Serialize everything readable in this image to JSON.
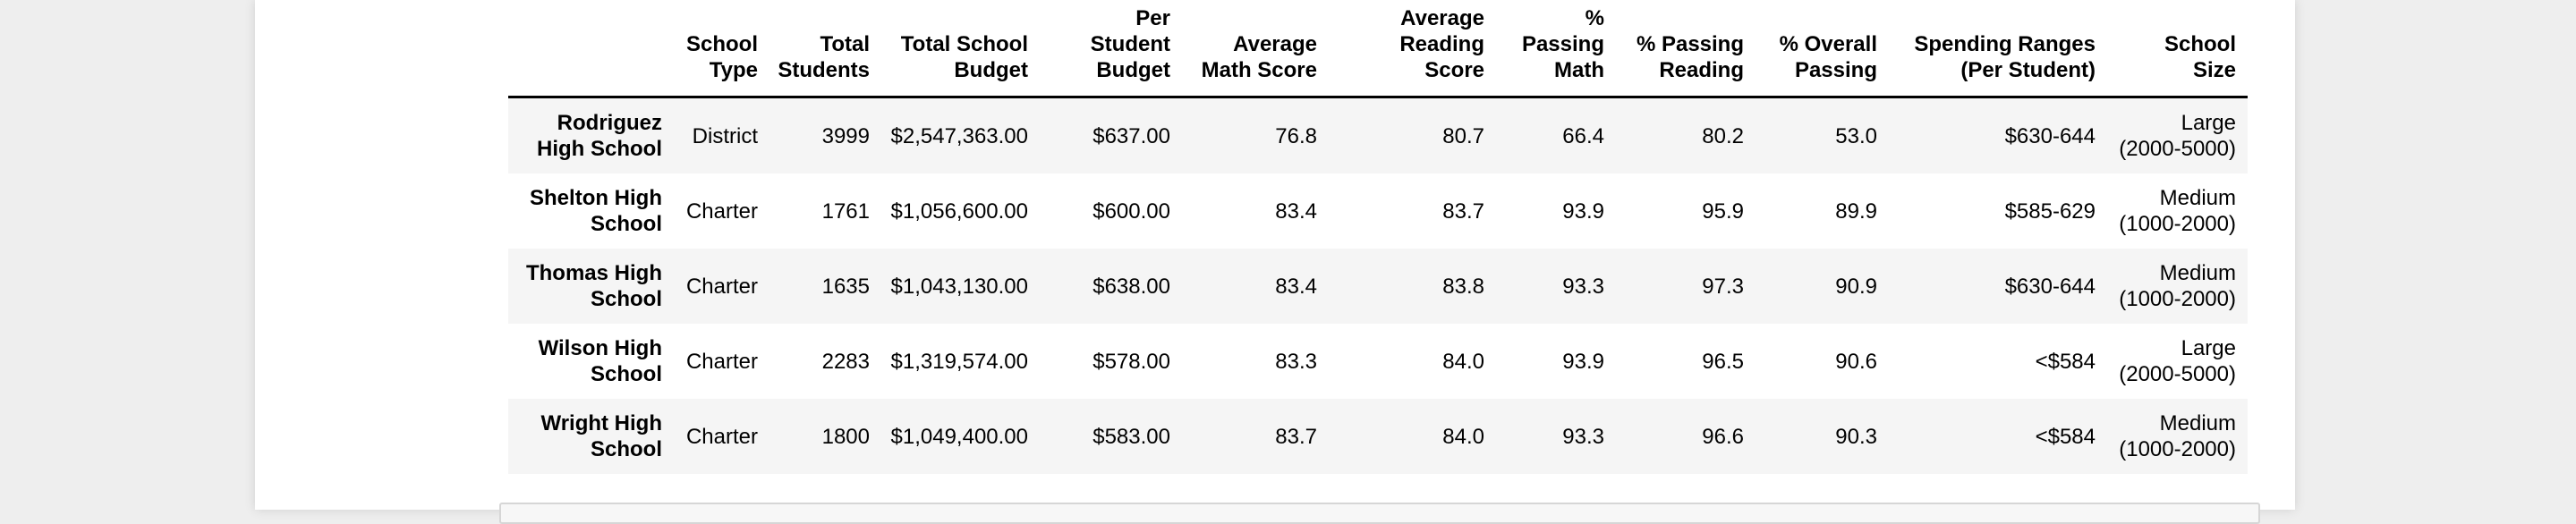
{
  "table": {
    "headers": [
      "",
      "School\nType",
      "Total\nStudents",
      "Total School\nBudget",
      "Per\nStudent\nBudget",
      "Average\nMath Score",
      "Average\nReading\nScore",
      "%\nPassing\nMath",
      "% Passing\nReading",
      "% Overall\nPassing",
      "Spending Ranges\n(Per Student)",
      "School\nSize"
    ],
    "rows": [
      [
        "Rodriguez\nHigh School",
        "District",
        "3999",
        "$2,547,363.00",
        "$637.00",
        "76.8",
        "80.7",
        "66.4",
        "80.2",
        "53.0",
        "$630-644",
        "Large\n(2000-5000)"
      ],
      [
        "Shelton High\nSchool",
        "Charter",
        "1761",
        "$1,056,600.00",
        "$600.00",
        "83.4",
        "83.7",
        "93.9",
        "95.9",
        "89.9",
        "$585-629",
        "Medium\n(1000-2000)"
      ],
      [
        "Thomas High\nSchool",
        "Charter",
        "1635",
        "$1,043,130.00",
        "$638.00",
        "83.4",
        "83.8",
        "93.3",
        "97.3",
        "90.9",
        "$630-644",
        "Medium\n(1000-2000)"
      ],
      [
        "Wilson High\nSchool",
        "Charter",
        "2283",
        "$1,319,574.00",
        "$578.00",
        "83.3",
        "84.0",
        "93.9",
        "96.5",
        "90.6",
        "<$584",
        "Large\n(2000-5000)"
      ],
      [
        "Wright High\nSchool",
        "Charter",
        "1800",
        "$1,049,400.00",
        "$583.00",
        "83.7",
        "84.0",
        "93.3",
        "96.6",
        "90.3",
        "<$584",
        "Medium\n(1000-2000)"
      ]
    ]
  }
}
